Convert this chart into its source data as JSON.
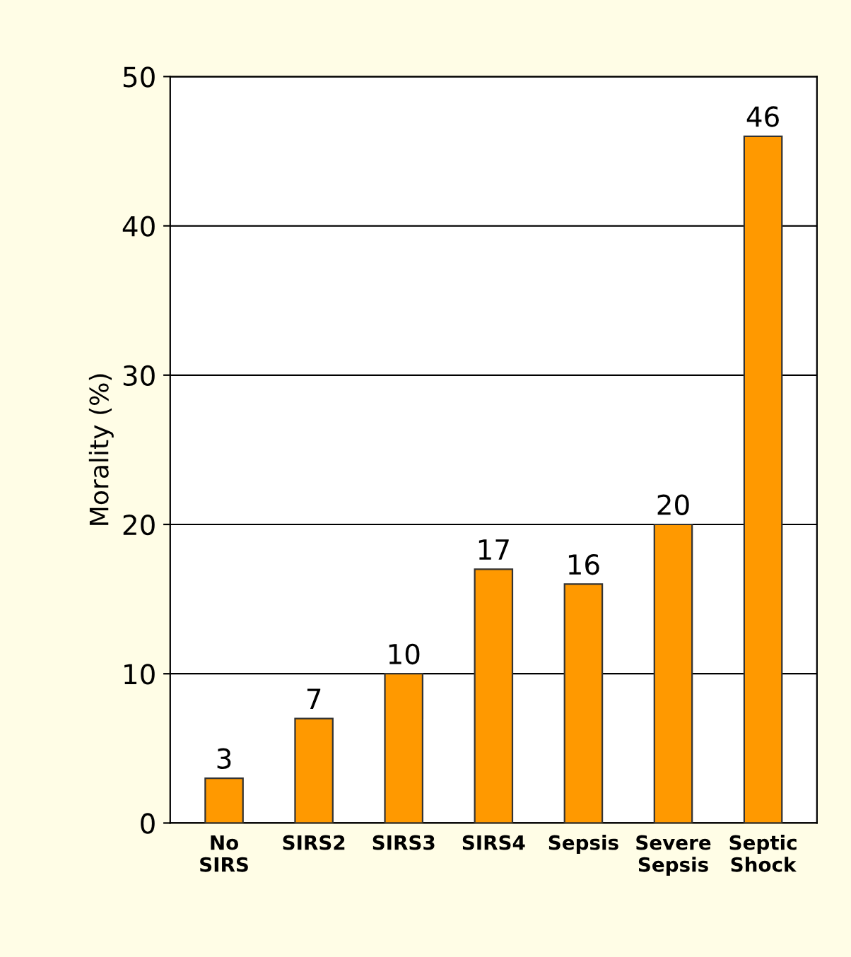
{
  "chart_data": {
    "type": "bar",
    "ylabel": "Morality (%)",
    "categories": [
      "No\nSIRS",
      "SIRS2",
      "SIRS3",
      "SIRS4",
      "Sepsis",
      "Severe\nSepsis",
      "Septic\nShock"
    ],
    "values": [
      3,
      7,
      10,
      17,
      16,
      20,
      46
    ],
    "color": "#ff9900",
    "ylim": [
      0,
      50
    ],
    "yticks": [
      0,
      10,
      20,
      30,
      40,
      50
    ],
    "grid": "y",
    "data_labels": true
  }
}
